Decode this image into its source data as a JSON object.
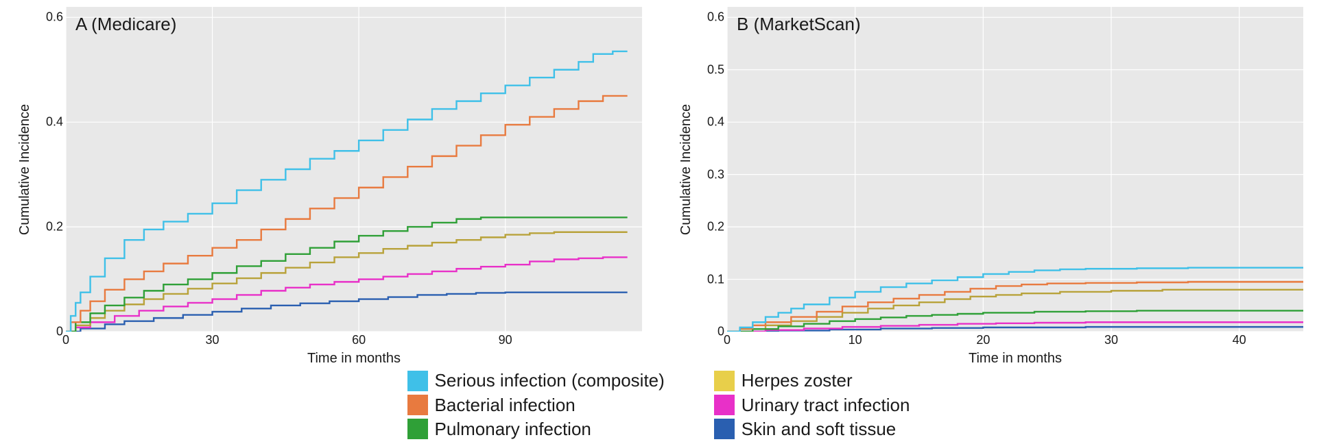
{
  "figure": {
    "background_color": "#ffffff",
    "panel_bg": "#e8e8e8",
    "grid_color": "#ffffff",
    "line_width": 2.4,
    "font_family": "Arial",
    "ylabel": "Cumulative Incidence",
    "ylabel_fontsize": 20,
    "xlabel": "Time in months",
    "xlabel_fontsize": 20,
    "tick_fontsize": 18,
    "panel_title_fontsize": 26,
    "legend_fontsize": 26
  },
  "colors": {
    "serious": "#3fc0e8",
    "bacterial": "#e87a3f",
    "pulmonary": "#2fa037",
    "herpes": "#e8cf4a",
    "uti": "#e830c8",
    "skin": "#2a5fb0",
    "zoster_line": "#b8a23a"
  },
  "legend": {
    "col1": [
      {
        "key": "serious",
        "label": "Serious infection (composite)"
      },
      {
        "key": "bacterial",
        "label": "Bacterial infection"
      },
      {
        "key": "pulmonary",
        "label": "Pulmonary infection"
      }
    ],
    "col2": [
      {
        "key": "herpes",
        "label": "Herpes zoster"
      },
      {
        "key": "uti",
        "label": "Urinary tract infection"
      },
      {
        "key": "skin",
        "label": "Skin and soft tissue"
      }
    ]
  },
  "panelA": {
    "title": "A (Medicare)",
    "xlim": [
      0,
      118
    ],
    "xticks": [
      0,
      30,
      60,
      90
    ],
    "ylim": [
      0,
      0.62
    ],
    "yticks": [
      0.0,
      0.2,
      0.4,
      0.6
    ],
    "type": "step",
    "series": {
      "serious": [
        [
          0,
          0
        ],
        [
          1,
          0.03
        ],
        [
          2,
          0.055
        ],
        [
          3,
          0.075
        ],
        [
          5,
          0.105
        ],
        [
          8,
          0.14
        ],
        [
          12,
          0.175
        ],
        [
          16,
          0.195
        ],
        [
          20,
          0.21
        ],
        [
          25,
          0.225
        ],
        [
          30,
          0.245
        ],
        [
          35,
          0.27
        ],
        [
          40,
          0.29
        ],
        [
          45,
          0.31
        ],
        [
          50,
          0.33
        ],
        [
          55,
          0.345
        ],
        [
          60,
          0.365
        ],
        [
          65,
          0.385
        ],
        [
          70,
          0.405
        ],
        [
          75,
          0.425
        ],
        [
          80,
          0.44
        ],
        [
          85,
          0.455
        ],
        [
          90,
          0.47
        ],
        [
          95,
          0.485
        ],
        [
          100,
          0.5
        ],
        [
          105,
          0.515
        ],
        [
          108,
          0.53
        ],
        [
          112,
          0.535
        ],
        [
          115,
          0.535
        ]
      ],
      "bacterial": [
        [
          0,
          0
        ],
        [
          1,
          0.018
        ],
        [
          3,
          0.04
        ],
        [
          5,
          0.058
        ],
        [
          8,
          0.08
        ],
        [
          12,
          0.1
        ],
        [
          16,
          0.115
        ],
        [
          20,
          0.13
        ],
        [
          25,
          0.145
        ],
        [
          30,
          0.16
        ],
        [
          35,
          0.175
        ],
        [
          40,
          0.195
        ],
        [
          45,
          0.215
        ],
        [
          50,
          0.235
        ],
        [
          55,
          0.255
        ],
        [
          60,
          0.275
        ],
        [
          65,
          0.295
        ],
        [
          70,
          0.315
        ],
        [
          75,
          0.335
        ],
        [
          80,
          0.355
        ],
        [
          85,
          0.375
        ],
        [
          90,
          0.395
        ],
        [
          95,
          0.41
        ],
        [
          100,
          0.425
        ],
        [
          105,
          0.44
        ],
        [
          110,
          0.45
        ],
        [
          115,
          0.45
        ]
      ],
      "pulmonary": [
        [
          0,
          0
        ],
        [
          2,
          0.018
        ],
        [
          5,
          0.035
        ],
        [
          8,
          0.05
        ],
        [
          12,
          0.065
        ],
        [
          16,
          0.078
        ],
        [
          20,
          0.09
        ],
        [
          25,
          0.1
        ],
        [
          30,
          0.112
        ],
        [
          35,
          0.125
        ],
        [
          40,
          0.135
        ],
        [
          45,
          0.148
        ],
        [
          50,
          0.16
        ],
        [
          55,
          0.172
        ],
        [
          60,
          0.183
        ],
        [
          65,
          0.192
        ],
        [
          70,
          0.2
        ],
        [
          75,
          0.208
        ],
        [
          80,
          0.215
        ],
        [
          85,
          0.218
        ],
        [
          90,
          0.218
        ],
        [
          100,
          0.218
        ],
        [
          110,
          0.218
        ],
        [
          115,
          0.218
        ]
      ],
      "herpes": [
        [
          0,
          0
        ],
        [
          2,
          0.012
        ],
        [
          5,
          0.026
        ],
        [
          8,
          0.04
        ],
        [
          12,
          0.052
        ],
        [
          16,
          0.062
        ],
        [
          20,
          0.072
        ],
        [
          25,
          0.082
        ],
        [
          30,
          0.092
        ],
        [
          35,
          0.102
        ],
        [
          40,
          0.112
        ],
        [
          45,
          0.122
        ],
        [
          50,
          0.132
        ],
        [
          55,
          0.142
        ],
        [
          60,
          0.15
        ],
        [
          65,
          0.158
        ],
        [
          70,
          0.164
        ],
        [
          75,
          0.17
        ],
        [
          80,
          0.175
        ],
        [
          85,
          0.18
        ],
        [
          90,
          0.185
        ],
        [
          95,
          0.188
        ],
        [
          100,
          0.19
        ],
        [
          108,
          0.19
        ],
        [
          115,
          0.19
        ]
      ],
      "uti": [
        [
          0,
          0
        ],
        [
          2,
          0.008
        ],
        [
          5,
          0.018
        ],
        [
          10,
          0.03
        ],
        [
          15,
          0.04
        ],
        [
          20,
          0.048
        ],
        [
          25,
          0.055
        ],
        [
          30,
          0.062
        ],
        [
          35,
          0.07
        ],
        [
          40,
          0.078
        ],
        [
          45,
          0.084
        ],
        [
          50,
          0.09
        ],
        [
          55,
          0.095
        ],
        [
          60,
          0.1
        ],
        [
          65,
          0.105
        ],
        [
          70,
          0.11
        ],
        [
          75,
          0.115
        ],
        [
          80,
          0.12
        ],
        [
          85,
          0.124
        ],
        [
          90,
          0.128
        ],
        [
          95,
          0.134
        ],
        [
          100,
          0.138
        ],
        [
          105,
          0.14
        ],
        [
          110,
          0.142
        ],
        [
          115,
          0.142
        ]
      ],
      "skin": [
        [
          0,
          0
        ],
        [
          3,
          0.006
        ],
        [
          8,
          0.014
        ],
        [
          12,
          0.02
        ],
        [
          18,
          0.026
        ],
        [
          24,
          0.032
        ],
        [
          30,
          0.038
        ],
        [
          36,
          0.044
        ],
        [
          42,
          0.05
        ],
        [
          48,
          0.054
        ],
        [
          54,
          0.058
        ],
        [
          60,
          0.062
        ],
        [
          66,
          0.066
        ],
        [
          72,
          0.07
        ],
        [
          78,
          0.072
        ],
        [
          84,
          0.074
        ],
        [
          90,
          0.075
        ],
        [
          100,
          0.075
        ],
        [
          110,
          0.075
        ],
        [
          115,
          0.075
        ]
      ]
    }
  },
  "panelB": {
    "title": "B (MarketScan)",
    "xlim": [
      0,
      45
    ],
    "xticks": [
      0,
      10,
      20,
      30,
      40
    ],
    "ylim": [
      0,
      0.62
    ],
    "yticks": [
      0.0,
      0.1,
      0.2,
      0.3,
      0.4,
      0.5,
      0.6
    ],
    "type": "step",
    "series": {
      "serious": [
        [
          0,
          0
        ],
        [
          1,
          0.008
        ],
        [
          2,
          0.018
        ],
        [
          3,
          0.028
        ],
        [
          4,
          0.036
        ],
        [
          5,
          0.044
        ],
        [
          6,
          0.052
        ],
        [
          8,
          0.065
        ],
        [
          10,
          0.076
        ],
        [
          12,
          0.085
        ],
        [
          14,
          0.092
        ],
        [
          16,
          0.098
        ],
        [
          18,
          0.104
        ],
        [
          20,
          0.11
        ],
        [
          22,
          0.114
        ],
        [
          24,
          0.117
        ],
        [
          26,
          0.119
        ],
        [
          28,
          0.12
        ],
        [
          32,
          0.121
        ],
        [
          36,
          0.122
        ],
        [
          40,
          0.122
        ],
        [
          45,
          0.122
        ]
      ],
      "bacterial": [
        [
          0,
          0
        ],
        [
          1,
          0.006
        ],
        [
          2,
          0.012
        ],
        [
          3,
          0.018
        ],
        [
          5,
          0.028
        ],
        [
          7,
          0.038
        ],
        [
          9,
          0.048
        ],
        [
          11,
          0.056
        ],
        [
          13,
          0.063
        ],
        [
          15,
          0.07
        ],
        [
          17,
          0.076
        ],
        [
          19,
          0.082
        ],
        [
          21,
          0.087
        ],
        [
          23,
          0.09
        ],
        [
          25,
          0.092
        ],
        [
          28,
          0.093
        ],
        [
          32,
          0.094
        ],
        [
          36,
          0.095
        ],
        [
          40,
          0.095
        ],
        [
          45,
          0.095
        ]
      ],
      "herpes": [
        [
          0,
          0
        ],
        [
          1,
          0.005
        ],
        [
          3,
          0.012
        ],
        [
          5,
          0.02
        ],
        [
          7,
          0.028
        ],
        [
          9,
          0.036
        ],
        [
          11,
          0.044
        ],
        [
          13,
          0.05
        ],
        [
          15,
          0.056
        ],
        [
          17,
          0.062
        ],
        [
          19,
          0.067
        ],
        [
          21,
          0.07
        ],
        [
          23,
          0.073
        ],
        [
          26,
          0.076
        ],
        [
          30,
          0.078
        ],
        [
          34,
          0.08
        ],
        [
          38,
          0.08
        ],
        [
          45,
          0.08
        ]
      ],
      "pulmonary": [
        [
          0,
          0
        ],
        [
          2,
          0.005
        ],
        [
          4,
          0.01
        ],
        [
          6,
          0.015
        ],
        [
          8,
          0.02
        ],
        [
          10,
          0.024
        ],
        [
          12,
          0.027
        ],
        [
          14,
          0.03
        ],
        [
          16,
          0.032
        ],
        [
          18,
          0.034
        ],
        [
          20,
          0.036
        ],
        [
          24,
          0.038
        ],
        [
          28,
          0.039
        ],
        [
          32,
          0.04
        ],
        [
          36,
          0.04
        ],
        [
          40,
          0.04
        ],
        [
          45,
          0.04
        ]
      ],
      "uti": [
        [
          0,
          0
        ],
        [
          3,
          0.003
        ],
        [
          6,
          0.006
        ],
        [
          9,
          0.009
        ],
        [
          12,
          0.011
        ],
        [
          15,
          0.013
        ],
        [
          18,
          0.015
        ],
        [
          21,
          0.016
        ],
        [
          24,
          0.017
        ],
        [
          28,
          0.018
        ],
        [
          32,
          0.018
        ],
        [
          36,
          0.018
        ],
        [
          40,
          0.018
        ],
        [
          45,
          0.018
        ]
      ],
      "skin": [
        [
          0,
          0
        ],
        [
          4,
          0.002
        ],
        [
          8,
          0.004
        ],
        [
          12,
          0.006
        ],
        [
          16,
          0.007
        ],
        [
          20,
          0.008
        ],
        [
          24,
          0.008
        ],
        [
          28,
          0.009
        ],
        [
          32,
          0.009
        ],
        [
          36,
          0.009
        ],
        [
          40,
          0.009
        ],
        [
          45,
          0.009
        ]
      ]
    }
  }
}
